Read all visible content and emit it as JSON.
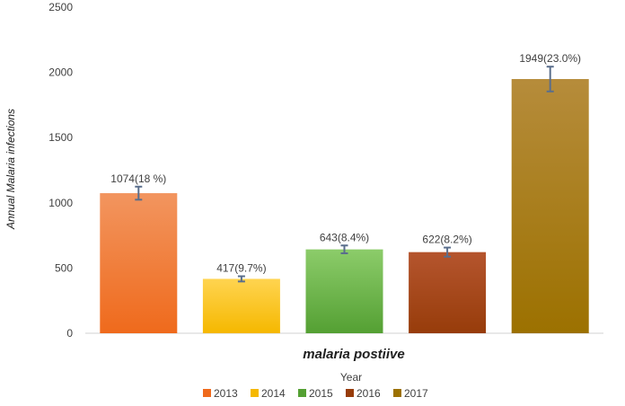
{
  "chart_data": {
    "type": "bar",
    "ylabel": "Annual Malaria infections",
    "category_label": "malaria postiive",
    "legend_title": "Year",
    "legend_position": "bottom",
    "ylim": [
      0,
      2500
    ],
    "yticks": [
      "0",
      "500",
      "1000",
      "1500",
      "2000",
      "2500"
    ],
    "grid": false,
    "series": [
      {
        "name": "2013",
        "value": 1074,
        "error": 50,
        "label": "1074(18 %)",
        "color_top": "#f2955f",
        "color_bottom": "#ef6a1c"
      },
      {
        "name": "2014",
        "value": 417,
        "error": 20,
        "label": "417(9.7%)",
        "color_top": "#ffd450",
        "color_bottom": "#f5b800"
      },
      {
        "name": "2015",
        "value": 643,
        "error": 30,
        "label": "643(8.4%)",
        "color_top": "#8ccc6a",
        "color_bottom": "#54a033"
      },
      {
        "name": "2016",
        "value": 622,
        "error": 35,
        "label": "622(8.2%)",
        "color_top": "#b5552e",
        "color_bottom": "#973c0a"
      },
      {
        "name": "2017",
        "value": 1949,
        "error": 95,
        "label": "1949(23.0%)",
        "color_top": "#b68c3b",
        "color_bottom": "#9c7100"
      }
    ]
  }
}
